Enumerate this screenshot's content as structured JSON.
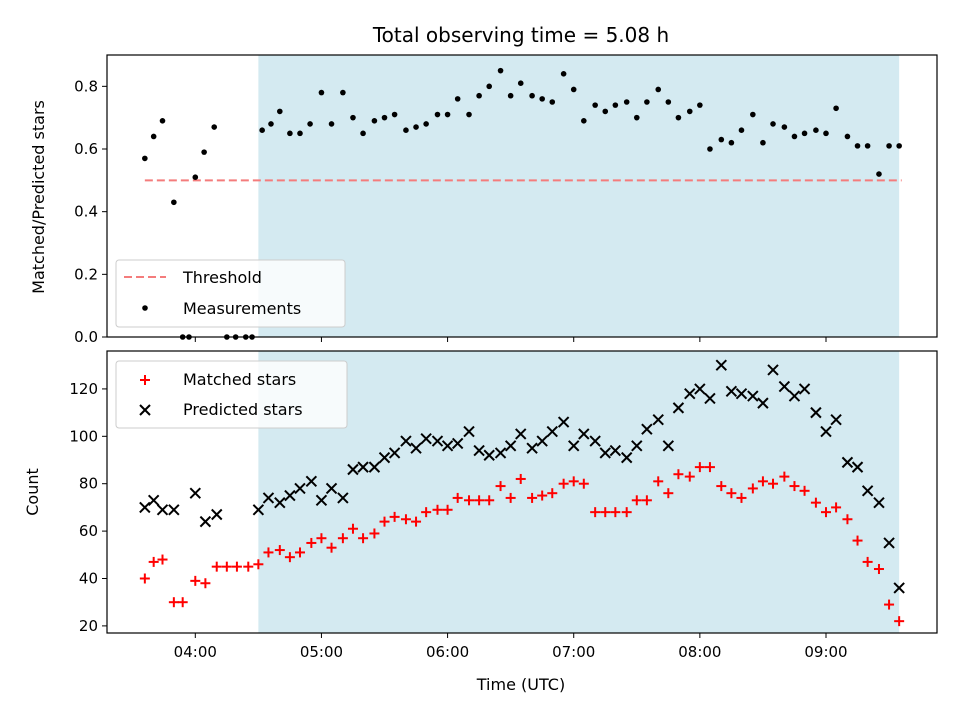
{
  "chart_data": {
    "type": "scatter",
    "title": "Total observing time = 5.08 h",
    "xlabel": "Time (UTC)",
    "x_tick_labels": [
      "04:00",
      "05:00",
      "06:00",
      "07:00",
      "08:00",
      "09:00"
    ],
    "x_tick_hours": [
      4,
      5,
      6,
      7,
      8,
      9
    ],
    "xlim_hours": [
      3.3,
      9.88
    ],
    "shaded_region_hours": [
      4.5,
      9.58
    ],
    "colors": {
      "shade": "#d4eaf1",
      "threshold": "#f47c7c",
      "measurements": "#000000",
      "matched": "#ff0000",
      "predicted": "#000000"
    },
    "panels": [
      {
        "ylabel": "Matched/Predicted stars",
        "ylim": [
          0,
          0.9
        ],
        "y_ticks": [
          0.0,
          0.2,
          0.4,
          0.6,
          0.8
        ],
        "y_tick_labels": [
          "0.0",
          "0.2",
          "0.4",
          "0.6",
          "0.8"
        ],
        "legend": {
          "position": "lower left",
          "entries": [
            "Threshold",
            "Measurements"
          ]
        },
        "threshold": {
          "name": "Threshold",
          "value": 0.5,
          "x_range_hours": [
            3.6,
            9.6
          ]
        },
        "series": [
          {
            "name": "Measurements",
            "marker": "dot",
            "x_hours": [
              3.6,
              3.67,
              3.74,
              3.83,
              3.9,
              3.95,
              4.0,
              4.07,
              4.15,
              4.25,
              4.32,
              4.4,
              4.45,
              4.53,
              4.6,
              4.67,
              4.75,
              4.83,
              4.91,
              5.0,
              5.08,
              5.17,
              5.25,
              5.33,
              5.42,
              5.5,
              5.58,
              5.67,
              5.75,
              5.83,
              5.92,
              6.0,
              6.08,
              6.17,
              6.25,
              6.33,
              6.42,
              6.5,
              6.58,
              6.67,
              6.75,
              6.83,
              6.92,
              7.0,
              7.08,
              7.17,
              7.25,
              7.33,
              7.42,
              7.5,
              7.58,
              7.67,
              7.75,
              7.83,
              7.92,
              8.0,
              8.08,
              8.17,
              8.25,
              8.33,
              8.42,
              8.5,
              8.58,
              8.67,
              8.75,
              8.83,
              8.92,
              9.0,
              9.08,
              9.17,
              9.25,
              9.33,
              9.42,
              9.5,
              9.58
            ],
            "y": [
              0.57,
              0.64,
              0.69,
              0.43,
              0.0,
              0.0,
              0.51,
              0.59,
              0.67,
              0.0,
              0.0,
              0.0,
              0.0,
              0.66,
              0.68,
              0.72,
              0.65,
              0.65,
              0.68,
              0.78,
              0.68,
              0.78,
              0.7,
              0.65,
              0.69,
              0.7,
              0.71,
              0.66,
              0.67,
              0.68,
              0.71,
              0.71,
              0.76,
              0.71,
              0.77,
              0.8,
              0.85,
              0.77,
              0.81,
              0.77,
              0.76,
              0.75,
              0.84,
              0.79,
              0.69,
              0.74,
              0.72,
              0.74,
              0.75,
              0.7,
              0.75,
              0.79,
              0.75,
              0.7,
              0.72,
              0.74,
              0.6,
              0.63,
              0.62,
              0.66,
              0.71,
              0.62,
              0.68,
              0.67,
              0.64,
              0.65,
              0.66,
              0.65,
              0.73,
              0.64,
              0.61,
              0.61,
              0.52,
              0.61,
              0.61
            ]
          }
        ]
      },
      {
        "ylabel": "Count",
        "ylim": [
          17,
          136
        ],
        "y_ticks": [
          20,
          40,
          60,
          80,
          100,
          120
        ],
        "y_tick_labels": [
          "20",
          "40",
          "60",
          "80",
          "100",
          "120"
        ],
        "legend": {
          "position": "upper left",
          "entries": [
            "Matched stars",
            "Predicted stars"
          ]
        },
        "series": [
          {
            "name": "Matched stars",
            "marker": "plus",
            "x_hours": [
              3.6,
              3.67,
              3.74,
              3.83,
              3.9,
              4.0,
              4.08,
              4.17,
              4.25,
              4.33,
              4.42,
              4.5,
              4.58,
              4.67,
              4.75,
              4.83,
              4.92,
              5.0,
              5.08,
              5.17,
              5.25,
              5.33,
              5.42,
              5.5,
              5.58,
              5.67,
              5.75,
              5.83,
              5.92,
              6.0,
              6.08,
              6.17,
              6.25,
              6.33,
              6.42,
              6.5,
              6.58,
              6.67,
              6.75,
              6.83,
              6.92,
              7.0,
              7.08,
              7.17,
              7.25,
              7.33,
              7.42,
              7.5,
              7.58,
              7.67,
              7.75,
              7.83,
              7.92,
              8.0,
              8.08,
              8.17,
              8.25,
              8.33,
              8.42,
              8.5,
              8.58,
              8.67,
              8.75,
              8.83,
              8.92,
              9.0,
              9.08,
              9.17,
              9.25,
              9.33,
              9.42,
              9.5,
              9.58
            ],
            "y": [
              40,
              47,
              48,
              30,
              30,
              39,
              38,
              45,
              45,
              45,
              45,
              46,
              51,
              52,
              49,
              51,
              55,
              57,
              53,
              57,
              61,
              57,
              59,
              64,
              66,
              65,
              64,
              68,
              69,
              69,
              74,
              73,
              73,
              73,
              79,
              74,
              82,
              74,
              75,
              76,
              80,
              81,
              80,
              68,
              68,
              68,
              68,
              73,
              73,
              81,
              76,
              84,
              83,
              87,
              87,
              79,
              76,
              74,
              78,
              81,
              80,
              83,
              79,
              77,
              72,
              68,
              70,
              65,
              56,
              47,
              44,
              29,
              22
            ]
          },
          {
            "name": "Predicted stars",
            "marker": "cross",
            "x_hours": [
              3.6,
              3.67,
              3.74,
              3.83,
              4.0,
              4.08,
              4.17,
              4.5,
              4.58,
              4.67,
              4.75,
              4.83,
              4.92,
              5.0,
              5.08,
              5.17,
              5.25,
              5.33,
              5.42,
              5.5,
              5.58,
              5.67,
              5.75,
              5.83,
              5.92,
              6.0,
              6.08,
              6.17,
              6.25,
              6.33,
              6.42,
              6.5,
              6.58,
              6.67,
              6.75,
              6.83,
              6.92,
              7.0,
              7.08,
              7.17,
              7.25,
              7.33,
              7.42,
              7.5,
              7.58,
              7.67,
              7.75,
              7.83,
              7.92,
              8.0,
              8.08,
              8.17,
              8.25,
              8.33,
              8.42,
              8.5,
              8.58,
              8.67,
              8.75,
              8.83,
              8.92,
              9.0,
              9.08,
              9.17,
              9.25,
              9.33,
              9.42,
              9.5,
              9.58
            ],
            "y": [
              70,
              73,
              69,
              69,
              76,
              64,
              67,
              69,
              74,
              72,
              75,
              78,
              81,
              73,
              78,
              74,
              86,
              87,
              87,
              91,
              93,
              98,
              95,
              99,
              98,
              96,
              97,
              102,
              94,
              92,
              93,
              96,
              101,
              95,
              98,
              102,
              106,
              96,
              101,
              98,
              93,
              94,
              91,
              96,
              103,
              107,
              96,
              112,
              118,
              120,
              116,
              130,
              119,
              118,
              117,
              114,
              128,
              121,
              117,
              120,
              110,
              102,
              107,
              89,
              87,
              77,
              72,
              55,
              36
            ]
          }
        ]
      }
    ]
  }
}
